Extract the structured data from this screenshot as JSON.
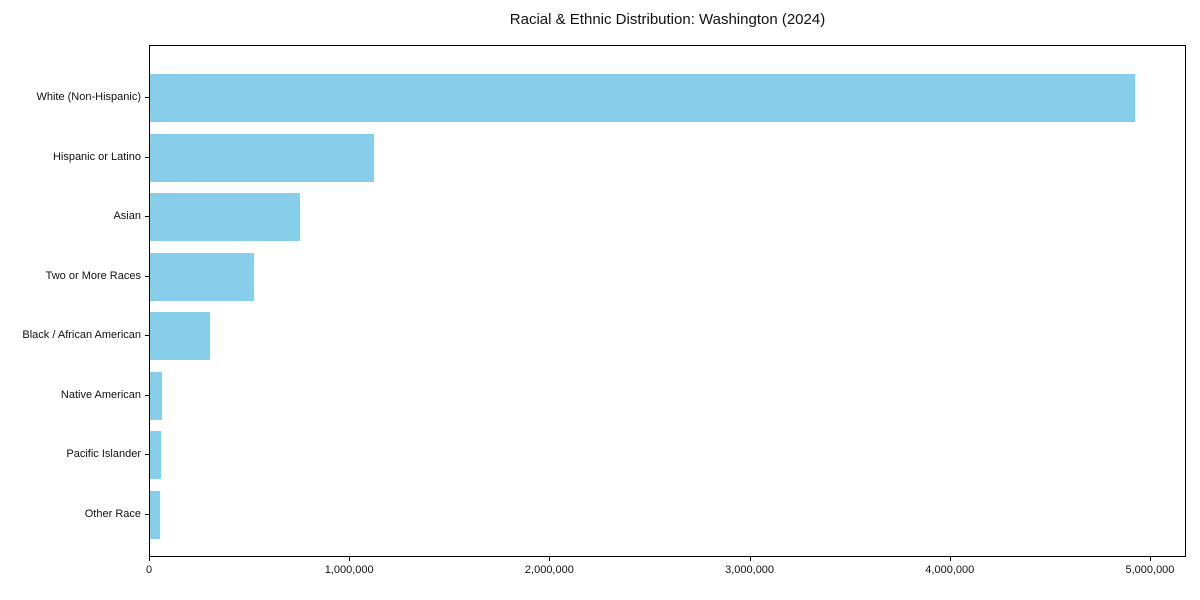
{
  "chart_data": {
    "type": "bar",
    "orientation": "horizontal",
    "title": "Racial & Ethnic Distribution: Washington (2024)",
    "categories": [
      "White (Non-Hispanic)",
      "Hispanic or Latino",
      "Asian",
      "Two or More Races",
      "Black / African American",
      "Native American",
      "Pacific Islander",
      "Other Race"
    ],
    "values": [
      4930000,
      1120000,
      750000,
      520000,
      300000,
      60000,
      55000,
      50000
    ],
    "xlabel": "",
    "ylabel": "",
    "xlim": [
      0,
      5180000
    ],
    "xticks": [
      {
        "value": 0,
        "label": "0"
      },
      {
        "value": 1000000,
        "label": "1,000,000"
      },
      {
        "value": 2000000,
        "label": "2,000,000"
      },
      {
        "value": 3000000,
        "label": "3,000,000"
      },
      {
        "value": 4000000,
        "label": "4,000,000"
      },
      {
        "value": 5000000,
        "label": "5,000,000"
      }
    ],
    "grid": false,
    "legend_position": "none",
    "colors": {
      "bar": "#87CEEB",
      "axis": "#000000",
      "text": "#111111",
      "background": "#ffffff"
    }
  }
}
